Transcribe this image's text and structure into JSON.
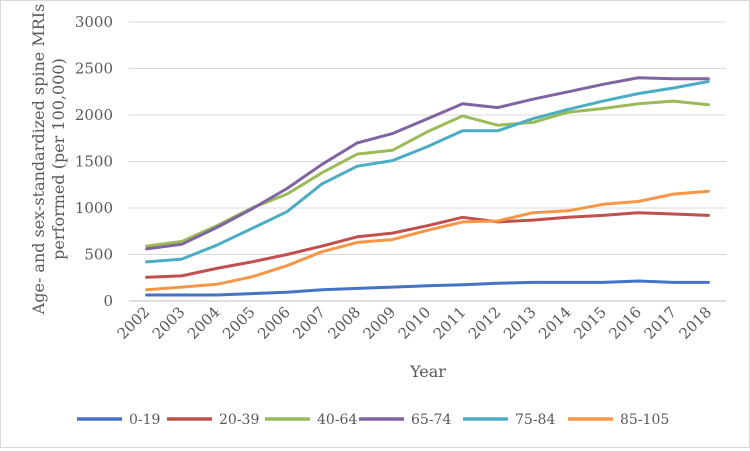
{
  "chart_data": {
    "type": "line",
    "title": "",
    "xlabel": "Year",
    "ylabel_line1": "Age- and sex-standardized spine MRIs",
    "ylabel_line2": "performed (per 100,000)",
    "ylim": [
      0,
      3000
    ],
    "ytick_step": 500,
    "grid": "horizontal",
    "legend_position": "bottom",
    "categories": [
      "2002",
      "2003",
      "2004",
      "2005",
      "2006",
      "2007",
      "2008",
      "2009",
      "2010",
      "2011",
      "2012",
      "2013",
      "2014",
      "2015",
      "2016",
      "2017",
      "2018"
    ],
    "series": [
      {
        "name": "0-19",
        "color": "#4472c4",
        "values": [
          65,
          65,
          65,
          80,
          95,
          120,
          135,
          150,
          165,
          175,
          190,
          200,
          200,
          200,
          215,
          200,
          200
        ]
      },
      {
        "name": "20-39",
        "color": "#c0504d",
        "values": [
          255,
          270,
          350,
          420,
          500,
          590,
          690,
          730,
          810,
          900,
          850,
          870,
          900,
          920,
          950,
          935,
          920
        ]
      },
      {
        "name": "40-64",
        "color": "#9bbb59",
        "values": [
          590,
          640,
          810,
          1000,
          1150,
          1380,
          1580,
          1620,
          1820,
          1990,
          1890,
          1920,
          2030,
          2070,
          2120,
          2150,
          2110
        ]
      },
      {
        "name": "65-74",
        "color": "#8064a2",
        "values": [
          560,
          610,
          790,
          990,
          1210,
          1470,
          1700,
          1800,
          1960,
          2120,
          2080,
          2170,
          2250,
          2330,
          2400,
          2390,
          2390
        ]
      },
      {
        "name": "75-84",
        "color": "#4bacc6",
        "values": [
          420,
          450,
          600,
          780,
          960,
          1260,
          1450,
          1510,
          1660,
          1830,
          1830,
          1960,
          2060,
          2150,
          2230,
          2290,
          2360
        ]
      },
      {
        "name": "85-105",
        "color": "#f79646",
        "values": [
          120,
          150,
          180,
          260,
          380,
          530,
          630,
          660,
          760,
          850,
          860,
          950,
          970,
          1040,
          1070,
          1150,
          1180
        ]
      }
    ]
  }
}
